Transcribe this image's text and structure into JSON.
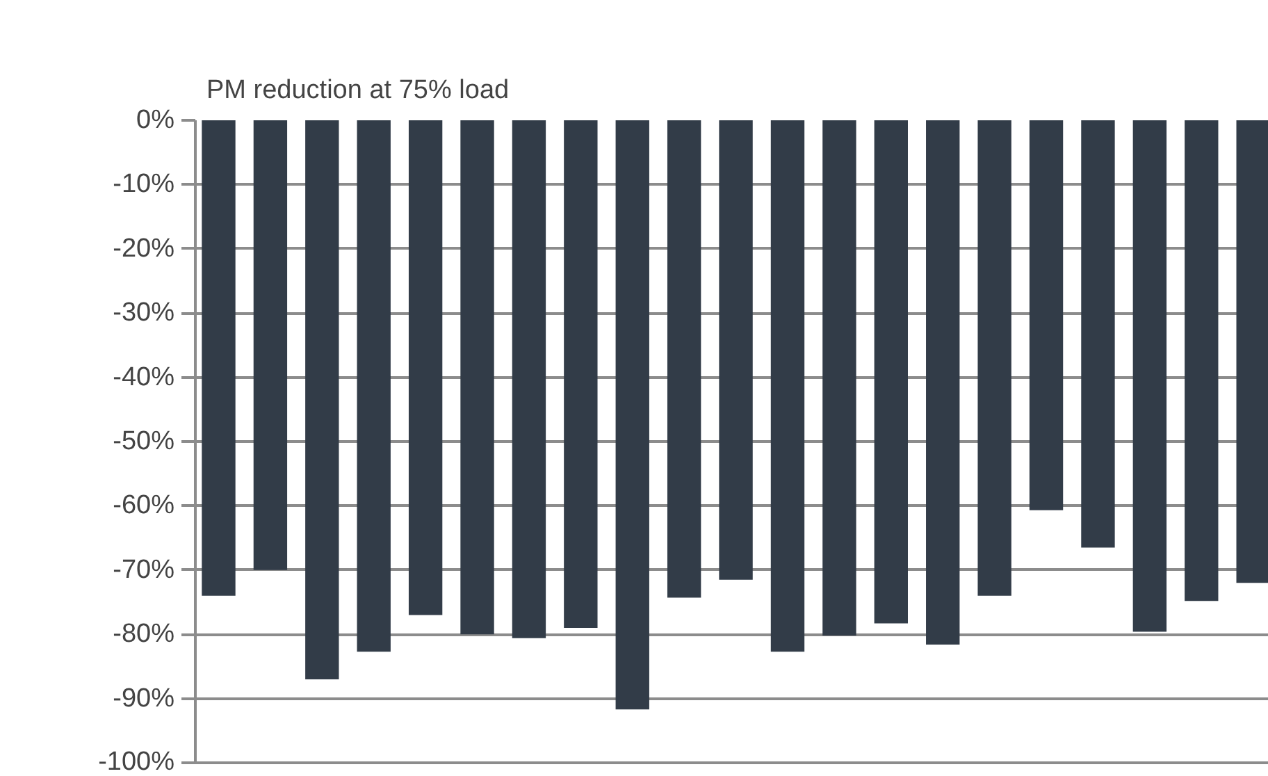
{
  "chart_data": {
    "type": "bar",
    "title": "PM reduction at 75% load",
    "categories": [
      null,
      null,
      null,
      null,
      null,
      null,
      null,
      null,
      null,
      null,
      null,
      null,
      null,
      null,
      null,
      null,
      null,
      null,
      null,
      null,
      null
    ],
    "values": [
      -74,
      -70,
      -87,
      -82.7,
      -77,
      -80,
      -80.6,
      -79,
      -91.7,
      -74.3,
      -71.5,
      -82.7,
      -80.2,
      -78.3,
      -81.6,
      -74,
      -60.7,
      -66.5,
      -79.6,
      -74.8,
      -72
    ],
    "color": "#323c48",
    "ylim": [
      -100,
      0
    ],
    "yticks": [
      {
        "value": 0,
        "label": "0%"
      },
      {
        "value": -10,
        "label": "-10%"
      },
      {
        "value": -20,
        "label": "-20%"
      },
      {
        "value": -30,
        "label": "-30%"
      },
      {
        "value": -40,
        "label": "-40%"
      },
      {
        "value": -50,
        "label": "-50%"
      },
      {
        "value": -60,
        "label": "-60%"
      },
      {
        "value": -70,
        "label": "-70%"
      },
      {
        "value": -80,
        "label": "-80%"
      },
      {
        "value": -90,
        "label": "-90%"
      },
      {
        "value": -100,
        "label": "-100%"
      }
    ],
    "grid": "y",
    "tick_labels": "y"
  }
}
